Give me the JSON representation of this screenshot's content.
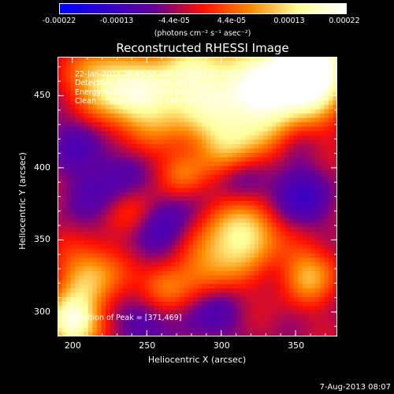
{
  "colorbar": {
    "ticks": [
      "-0.00022",
      "-0.00013",
      "-4.4e-05",
      "4.4e-05",
      "0.00013",
      "0.00022"
    ],
    "units": "(photons cm⁻² s⁻¹ asec⁻²)"
  },
  "chart_data": {
    "type": "heatmap",
    "title": "Reconstructed RHESSI Image",
    "xlabel": "Heliocentric X (arcsec)",
    "ylabel": "Heliocentric Y (arcsec)",
    "xlim": [
      190,
      378
    ],
    "ylim": [
      283,
      477
    ],
    "xticks": [
      "200",
      "250",
      "300",
      "350"
    ],
    "yticks": [
      "300",
      "350",
      "400",
      "450"
    ],
    "zlim": [
      -0.00022,
      0.00022
    ],
    "colormap": [
      "#0000ff",
      "#3300cc",
      "#660099",
      "#ff1100",
      "#ff8800",
      "#ffff99",
      "#ffffff"
    ],
    "peak": [
      371,
      469
    ]
  },
  "annotations": {
    "time_range": "22-Jan-2011 20:48:56.000 to 20:52:40.000",
    "detectors": "Detectors: 4F 5F 6F 7F 8F, Att 0",
    "energy_range": "Energy Range: 25.0 - 50.0 keV",
    "method": "Clean     Total counts: 3.14E+03",
    "peak": "Position of Peak = [371,469]"
  },
  "footer": {
    "date": "7-Aug-2013 08:07"
  }
}
